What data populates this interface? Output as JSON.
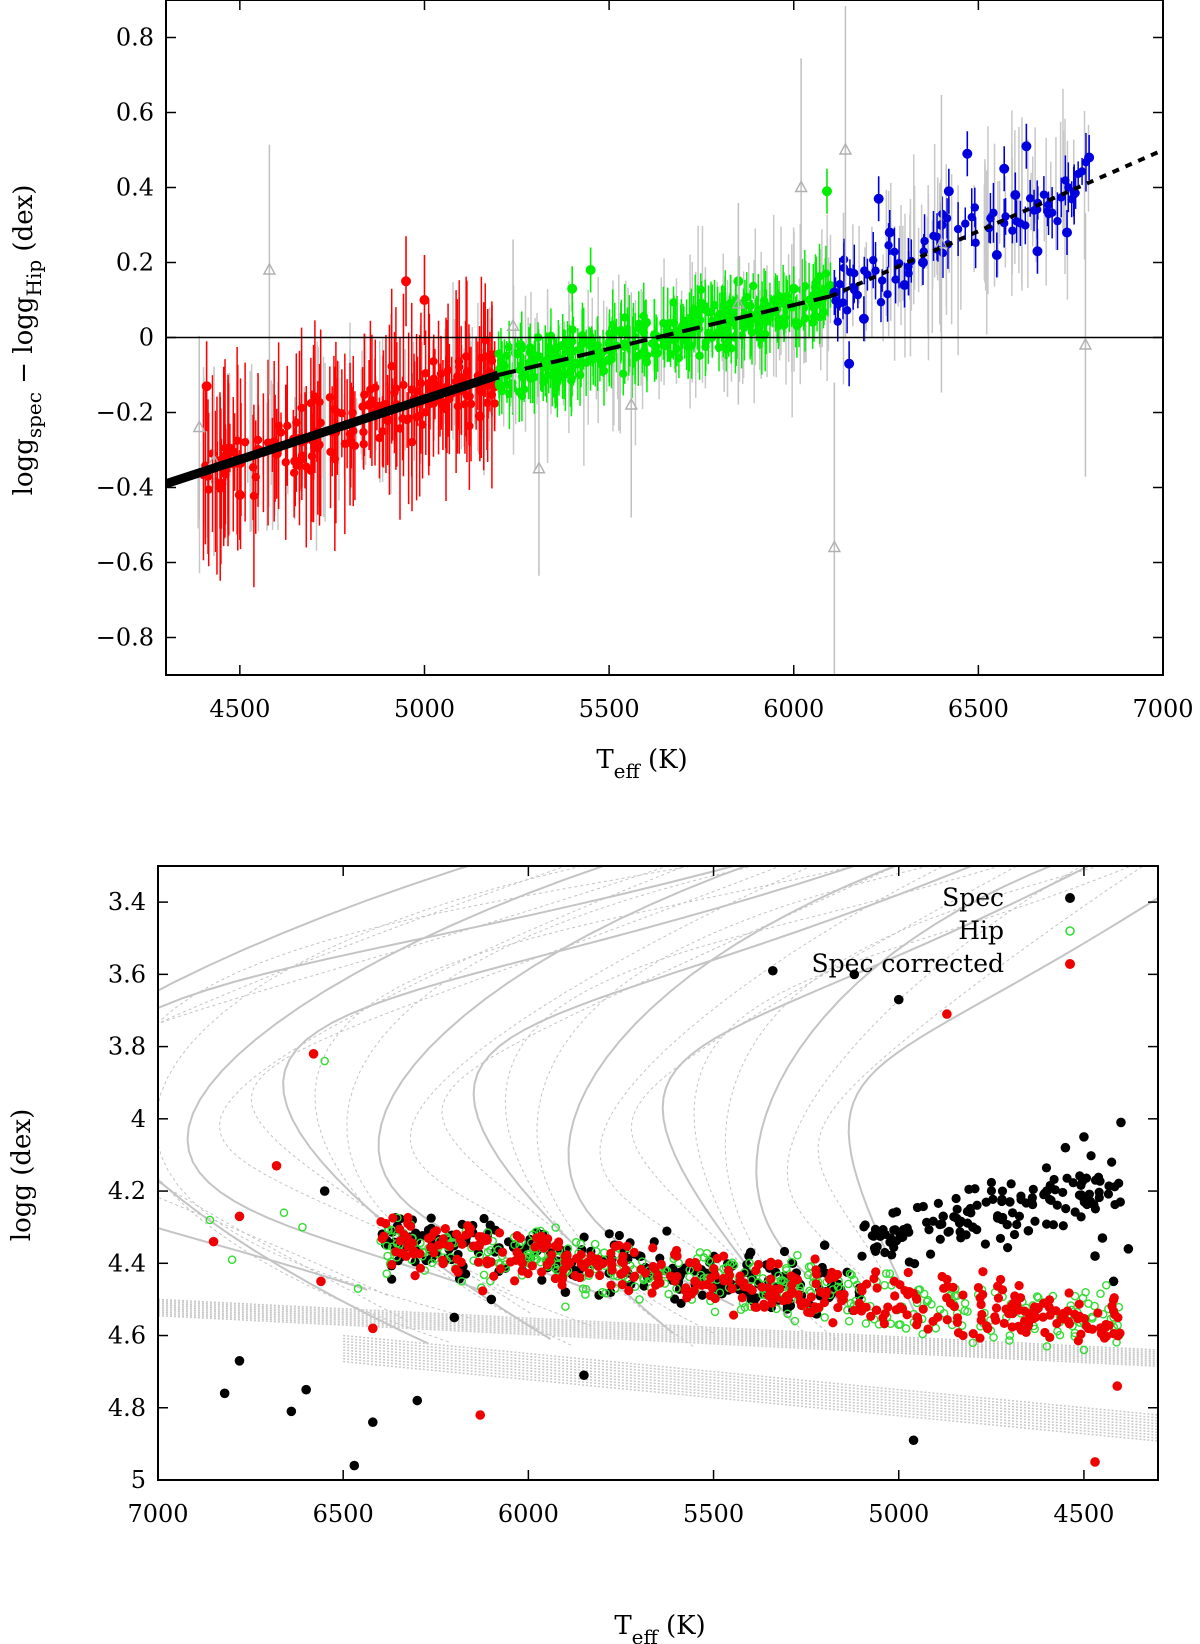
{
  "chart_data": [
    {
      "type": "scatter",
      "xlabel": "T_eff (K)",
      "xlabel_main": "T",
      "xlabel_sub": "eff",
      "xlabel_unit": " (K)",
      "ylabel_parts": [
        "logg",
        "spec",
        " − logg",
        "Hip",
        " (dex)"
      ],
      "xlim": [
        4300,
        7000
      ],
      "ylim": [
        -0.9,
        0.9
      ],
      "x_ticks": [
        4500,
        5000,
        5500,
        6000,
        6500,
        7000
      ],
      "y_ticks": [
        -0.8,
        -0.6,
        -0.4,
        -0.2,
        0,
        0.2,
        0.4,
        0.6,
        0.8
      ],
      "y_tick_labels": [
        "−0.8",
        "−0.6",
        "−0.4",
        "−0.2",
        "0",
        "0.2",
        "0.4",
        "0.6",
        "0.8"
      ],
      "zero_line": 0,
      "series": [
        {
          "color": "#ff0000",
          "marker": "filled-circle",
          "with_errorbars": true,
          "x_range": [
            4400,
            5200
          ],
          "x": [
            4410,
            4450,
            4500,
            4550,
            4600,
            4650,
            4700,
            4750,
            4800,
            4850,
            4900,
            4950,
            5000,
            5050,
            5100,
            5150,
            5190
          ],
          "y": [
            -0.13,
            -0.39,
            -0.42,
            -0.3,
            -0.31,
            -0.33,
            -0.26,
            -0.25,
            -0.28,
            -0.18,
            -0.22,
            0.15,
            0.1,
            -0.18,
            -0.14,
            -0.21,
            -0.13
          ]
        },
        {
          "color": "#00ee00",
          "marker": "filled-circle",
          "with_errorbars": true,
          "x_range": [
            5200,
            6100
          ],
          "x": [
            5210,
            5260,
            5300,
            5350,
            5400,
            5450,
            5500,
            5550,
            5600,
            5650,
            5700,
            5750,
            5800,
            5850,
            5900,
            5950,
            6000,
            6050,
            6090
          ],
          "y": [
            -0.07,
            -0.02,
            -0.05,
            -0.1,
            0.13,
            0.18,
            -0.06,
            0.02,
            0.04,
            -0.02,
            0.03,
            0.09,
            0.06,
            0.15,
            0.05,
            0.1,
            0.13,
            0.09,
            0.39
          ]
        },
        {
          "color": "#0000dd",
          "marker": "filled-circle",
          "with_errorbars": true,
          "x_range": [
            6100,
            6800
          ],
          "x": [
            6110,
            6150,
            6190,
            6230,
            6260,
            6300,
            6350,
            6400,
            6420,
            6470,
            6550,
            6570,
            6600,
            6630,
            6660,
            6740,
            6800
          ],
          "y": [
            0.12,
            -0.07,
            0.05,
            0.37,
            0.28,
            0.14,
            0.2,
            0.3,
            0.39,
            0.49,
            0.22,
            0.45,
            0.38,
            0.51,
            0.23,
            0.28,
            0.48
          ]
        },
        {
          "color": "#c0c0c0",
          "marker": "open-triangle",
          "with_errorbars": true,
          "x": [
            4390,
            4430,
            4580,
            5240,
            5310,
            5560,
            5850,
            6020,
            6110,
            6140,
            6400,
            6790
          ],
          "y": [
            -0.24,
            -0.33,
            0.18,
            0.03,
            -0.35,
            -0.18,
            0.09,
            0.4,
            -0.56,
            0.5,
            0.25,
            -0.02
          ]
        }
      ],
      "fits": [
        {
          "style": "solid-thick",
          "x": [
            4300,
            5200
          ],
          "y": [
            -0.39,
            -0.1
          ]
        },
        {
          "style": "dashed",
          "x": [
            5200,
            6100
          ],
          "y": [
            -0.1,
            0.11
          ]
        },
        {
          "style": "dotted",
          "x": [
            6100,
            7000
          ],
          "y": [
            0.11,
            0.5
          ]
        }
      ]
    },
    {
      "type": "scatter",
      "xlabel": "T_eff (K)",
      "xlabel_main": "T",
      "xlabel_sub": "eff",
      "xlabel_unit": " (K)",
      "ylabel": "logg (dex)",
      "xlim": [
        7000,
        4300
      ],
      "ylim": [
        5.0,
        3.3
      ],
      "x_ticks": [
        7000,
        6500,
        6000,
        5500,
        5000,
        4500
      ],
      "y_ticks": [
        3.4,
        3.6,
        3.8,
        4,
        4.2,
        4.4,
        4.6,
        4.8,
        5
      ],
      "legend": [
        "Spec",
        "Hip",
        "Spec corrected"
      ],
      "legend_placement": "top-right",
      "series": [
        {
          "name": "Spec",
          "color": "#000000",
          "marker": "filled-circle",
          "x": [
            6820,
            6780,
            6640,
            6600,
            6550,
            6470,
            6420,
            6300,
            6200,
            6100,
            6000,
            5900,
            5850,
            5700,
            5600,
            5500,
            5400,
            5340,
            5300,
            5200,
            5120,
            5000,
            4960,
            4880,
            4800,
            4700,
            4650,
            4600,
            4550,
            4500,
            4450,
            4400,
            4420,
            4470,
            4380
          ],
          "y": [
            4.76,
            4.67,
            4.81,
            4.75,
            4.2,
            4.96,
            4.84,
            4.78,
            4.55,
            4.5,
            4.35,
            4.48,
            4.71,
            4.38,
            4.45,
            4.42,
            4.37,
            3.59,
            4.52,
            4.35,
            3.6,
            3.67,
            4.89,
            4.27,
            4.3,
            4.23,
            4.31,
            4.2,
            4.08,
            4.05,
            4.33,
            4.01,
            4.45,
            4.38,
            4.36
          ]
        },
        {
          "name": "Hip",
          "color": "#33dd33",
          "marker": "open-circle",
          "x": [
            6860,
            6800,
            6660,
            6610,
            6550,
            6460,
            6380,
            6280,
            6180,
            6080,
            5980,
            5900,
            5800,
            5700,
            5600,
            5500,
            5400,
            5300,
            5200,
            5100,
            5000,
            4900,
            4800,
            4700,
            4600,
            4500,
            4420
          ],
          "y": [
            4.28,
            4.39,
            4.26,
            4.3,
            3.84,
            4.47,
            4.38,
            4.42,
            4.45,
            4.4,
            4.39,
            4.52,
            4.48,
            4.5,
            4.47,
            4.49,
            4.52,
            4.54,
            4.55,
            4.5,
            4.57,
            4.58,
            4.62,
            4.6,
            4.63,
            4.64,
            4.55
          ]
        },
        {
          "name": "Spec corrected",
          "color": "#ee0000",
          "marker": "filled-circle",
          "x": [
            6850,
            6780,
            6680,
            6580,
            6560,
            6420,
            6330,
            6230,
            6130,
            6030,
            5950,
            5850,
            5750,
            5650,
            5550,
            5450,
            5350,
            5250,
            5150,
            5060,
            4950,
            4870,
            4760,
            4650,
            4560,
            4470,
            4410
          ],
          "y": [
            4.34,
            4.27,
            4.13,
            3.82,
            4.45,
            4.58,
            4.38,
            4.4,
            4.82,
            4.37,
            4.35,
            4.41,
            4.43,
            4.44,
            4.45,
            4.47,
            4.49,
            4.51,
            4.5,
            4.53,
            4.55,
            3.71,
            4.58,
            4.57,
            4.55,
            4.95,
            4.74
          ]
        }
      ]
    }
  ]
}
